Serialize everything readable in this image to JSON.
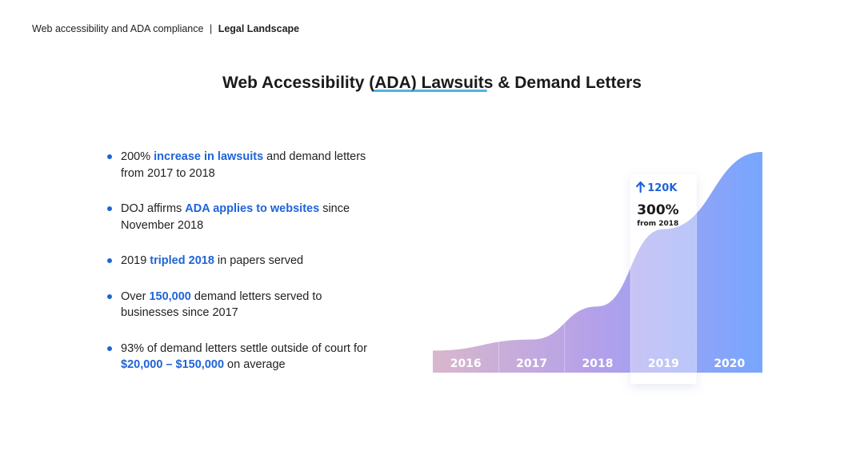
{
  "breadcrumb": {
    "section": "Web accessibility and ADA compliance",
    "separator": "|",
    "page": "Legal Landscape"
  },
  "title": "Web Accessibility (ADA) Lawsuits & Demand Letters",
  "bullets": [
    {
      "before": "200% ",
      "highlight": "increase in lawsuits",
      "after": " and demand letters from 2017 to 2018"
    },
    {
      "before": "DOJ affirms ",
      "highlight": "ADA applies to websites",
      "after": " since November 2018"
    },
    {
      "before": "2019 ",
      "highlight": "tripled 2018",
      "after": " in papers served"
    },
    {
      "before": "Over ",
      "highlight": "150,000",
      "after": " demand letters served to businesses since 2017"
    },
    {
      "before": "93% of demand letters settle outside of court for ",
      "highlight": "$20,000 – $150,000",
      "after": " on average"
    }
  ],
  "chart_data": {
    "type": "area",
    "categories": [
      "2016",
      "2017",
      "2018",
      "2019",
      "2020"
    ],
    "values": [
      0.1,
      0.15,
      0.3,
      0.65,
      1.0
    ],
    "highlight_category": "2019",
    "callout": {
      "arrow": "arrow-up-icon",
      "value": "120K",
      "percent": "300%",
      "sub": "from 2018"
    },
    "colors": {
      "start": "#d9b7cc",
      "mid": "#b3a0ea",
      "end": "#77a6ff",
      "label": "#ffffff",
      "callout_text": "#1f64d8"
    }
  }
}
